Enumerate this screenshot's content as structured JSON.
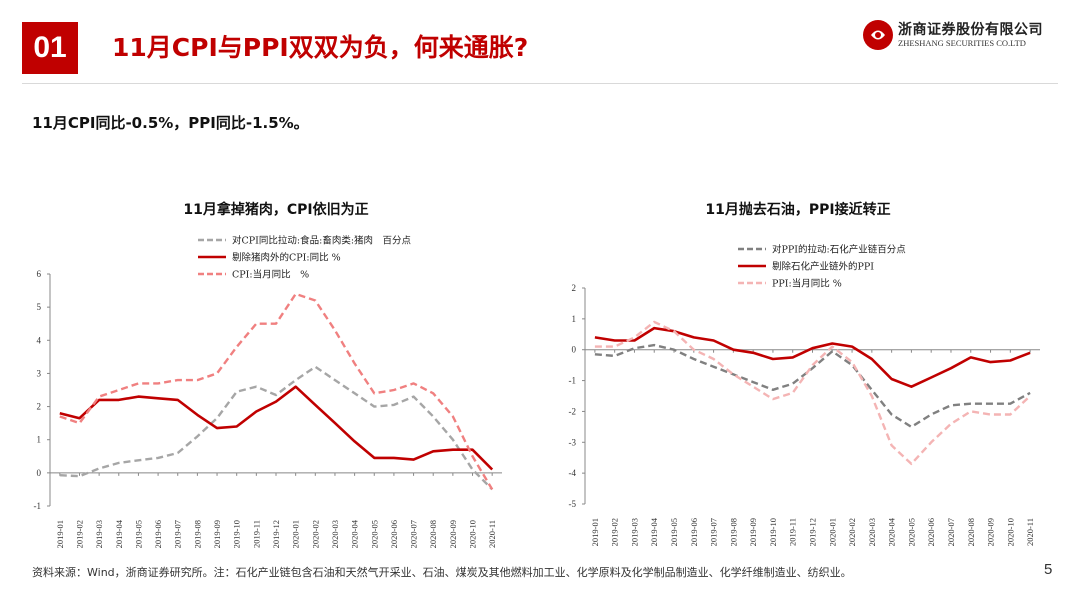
{
  "header": {
    "section_number": "01",
    "title": "11月CPI与PPI双双为负，何来通胀?",
    "logo_cn": "浙商证券股份有限公司",
    "logo_en": "ZHESHANG SECURITIES CO.LTD"
  },
  "subtitle": "11月CPI同比-0.5%，PPI同比-1.5%。",
  "footer": {
    "source_note": "资料来源：Wind，浙商证券研究所。注：石化产业链包含石油和天然气开采业、石油、煤炭及其他燃料加工业、化学原料及化学制品制造业、化学纤维制造业、纺织业。",
    "page_number": "5"
  },
  "colors": {
    "accent": "#c00000",
    "series_gray": "#a6a6a6",
    "series_dark_red": "#c00000",
    "series_light_red": "#f08080",
    "series_pink": "#f4b4b4"
  },
  "chart_data": [
    {
      "type": "line",
      "title": "11月拿掉猪肉，CPI依旧为正",
      "x": [
        "2019-01",
        "2019-02",
        "2019-03",
        "2019-04",
        "2019-05",
        "2019-06",
        "2019-07",
        "2019-08",
        "2019-09",
        "2019-10",
        "2019-11",
        "2019-12",
        "2020-01",
        "2020-02",
        "2020-03",
        "2020-04",
        "2020-05",
        "2020-06",
        "2020-07",
        "2020-08",
        "2020-09",
        "2020-10",
        "2020-11"
      ],
      "ylim": [
        -1,
        6
      ],
      "yticks": [
        "-1",
        "0",
        "1",
        "2",
        "3",
        "4",
        "5",
        "6"
      ],
      "series": [
        {
          "name": "对CPI同比拉动:食品:畜肉类:猪肉　百分点",
          "style": "dashed",
          "color": "#a6a6a6",
          "values": [
            -0.07,
            -0.1,
            0.13,
            0.3,
            0.38,
            0.45,
            0.6,
            1.1,
            1.65,
            2.45,
            2.6,
            2.35,
            2.8,
            3.2,
            2.8,
            2.4,
            2.0,
            2.05,
            2.3,
            1.7,
            1.0,
            0.1,
            -0.5
          ]
        },
        {
          "name": "剔除猪肉外的CPI:同比 %",
          "style": "solid",
          "color": "#c00000",
          "values": [
            1.8,
            1.65,
            2.2,
            2.2,
            2.3,
            2.25,
            2.2,
            1.75,
            1.35,
            1.4,
            1.85,
            2.15,
            2.6,
            2.05,
            1.5,
            0.95,
            0.45,
            0.45,
            0.4,
            0.65,
            0.7,
            0.7,
            0.1
          ]
        },
        {
          "name": "CPI:当月同比　%",
          "style": "dashed",
          "color": "#f08080",
          "values": [
            1.7,
            1.5,
            2.3,
            2.5,
            2.7,
            2.7,
            2.8,
            2.8,
            3.0,
            3.8,
            4.5,
            4.5,
            5.4,
            5.2,
            4.3,
            3.3,
            2.4,
            2.5,
            2.7,
            2.4,
            1.7,
            0.5,
            -0.5
          ]
        }
      ]
    },
    {
      "type": "line",
      "title": "11月抛去石油，PPI接近转正",
      "x": [
        "2019-01",
        "2019-02",
        "2019-03",
        "2019-04",
        "2019-05",
        "2019-06",
        "2019-07",
        "2019-08",
        "2019-09",
        "2019-10",
        "2019-11",
        "2019-12",
        "2020-01",
        "2020-02",
        "2020-03",
        "2020-04",
        "2020-05",
        "2020-06",
        "2020-07",
        "2020-08",
        "2020-09",
        "2020-10",
        "2020-11"
      ],
      "ylim": [
        -5,
        2
      ],
      "yticks": [
        "-5",
        "-4",
        "-3",
        "-2",
        "-1",
        "0",
        "1",
        "2"
      ],
      "series": [
        {
          "name": "对PPI的拉动:石化产业链百分点",
          "style": "dashed",
          "color": "#808080",
          "values": [
            -0.15,
            -0.2,
            0.05,
            0.15,
            0.0,
            -0.3,
            -0.55,
            -0.8,
            -1.05,
            -1.3,
            -1.1,
            -0.6,
            -0.05,
            -0.5,
            -1.3,
            -2.1,
            -2.5,
            -2.1,
            -1.8,
            -1.75,
            -1.75,
            -1.75,
            -1.4
          ]
        },
        {
          "name": "剔除石化产业链外的PPI",
          "style": "solid",
          "color": "#c00000",
          "values": [
            0.4,
            0.3,
            0.3,
            0.7,
            0.6,
            0.4,
            0.3,
            0.0,
            -0.1,
            -0.3,
            -0.25,
            0.05,
            0.2,
            0.1,
            -0.3,
            -0.95,
            -1.2,
            -0.9,
            -0.6,
            -0.25,
            -0.4,
            -0.35,
            -0.1
          ]
        },
        {
          "name": "PPI:当月同比 %",
          "style": "dashed",
          "color": "#f4b4b4",
          "values": [
            0.1,
            0.1,
            0.4,
            0.9,
            0.6,
            0.0,
            -0.3,
            -0.8,
            -1.2,
            -1.6,
            -1.4,
            -0.5,
            0.1,
            -0.4,
            -1.5,
            -3.1,
            -3.7,
            -3.0,
            -2.4,
            -2.0,
            -2.1,
            -2.1,
            -1.5
          ]
        }
      ]
    }
  ]
}
